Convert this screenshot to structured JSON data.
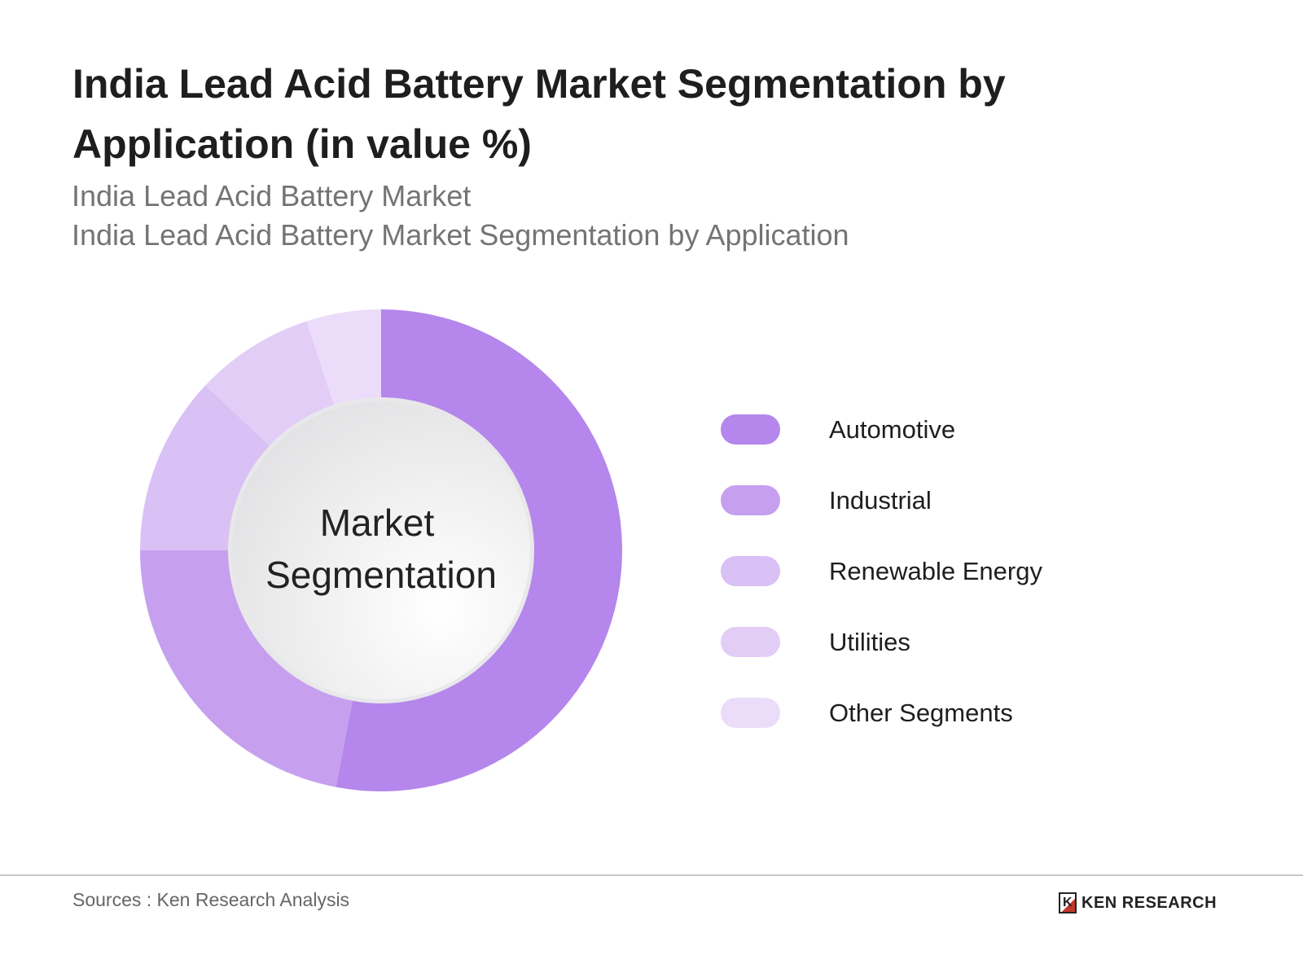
{
  "title": "India Lead Acid Battery Market Segmentation by Application (in value %)",
  "subtitle1": "India Lead Acid Battery Market",
  "subtitle2": "India Lead Acid Battery Market Segmentation by Application",
  "chart_data": {
    "type": "pie",
    "variant": "donut",
    "center_label": "Market Segmentation",
    "categories": [
      "Automotive",
      "Industrial",
      "Renewable Energy",
      "Utilities",
      "Other Segments"
    ],
    "values": [
      53,
      22,
      12,
      8,
      5
    ],
    "colors": [
      "#b586eb",
      "#c6a0ef",
      "#d9c0f5",
      "#e2cdf7",
      "#ebdcfa"
    ],
    "legend_position": "right"
  },
  "footer": {
    "sources": "Sources : Ken Research Analysis",
    "logo_text": "KEN RESEARCH"
  }
}
